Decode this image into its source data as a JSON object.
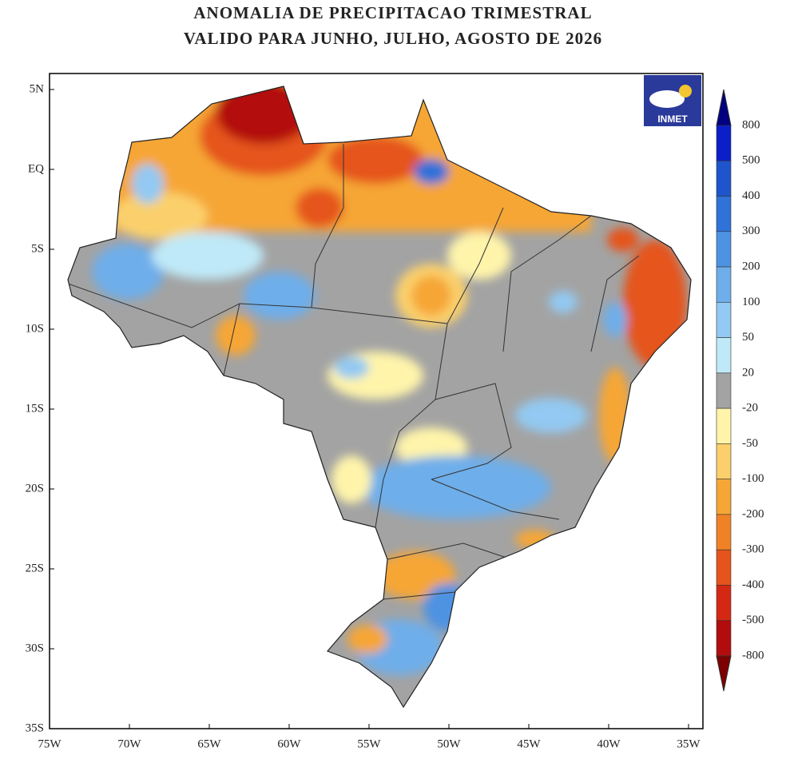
{
  "title": [
    "ANOMALIA DE PRECIPITACAO TRIMESTRAL",
    "VALIDO PARA JUNHO, JULHO, AGOSTO DE 2026"
  ],
  "lat_labels": [
    "5N",
    "EQ",
    "5S",
    "10S",
    "15S",
    "20S",
    "25S",
    "30S",
    "35S"
  ],
  "lon_labels": [
    "75W",
    "70W",
    "65W",
    "60W",
    "55W",
    "50W",
    "45W",
    "40W",
    "35W"
  ],
  "logo": "INMET",
  "colorbar": {
    "labels": [
      800,
      500,
      400,
      300,
      200,
      100,
      50,
      20,
      -20,
      -50,
      -100,
      -200,
      -300,
      -400,
      -500,
      -800
    ],
    "colors": [
      "#000080",
      "#0a1fc8",
      "#1f55cc",
      "#2f72d8",
      "#4d93e2",
      "#6eaeea",
      "#93c9f2",
      "#bfe9f8",
      "#a3a3a3",
      "#fff4aa",
      "#fbd06c",
      "#f6a636",
      "#f08226",
      "#e5541c",
      "#d42814",
      "#b30c0c",
      "#7d0000"
    ]
  }
}
